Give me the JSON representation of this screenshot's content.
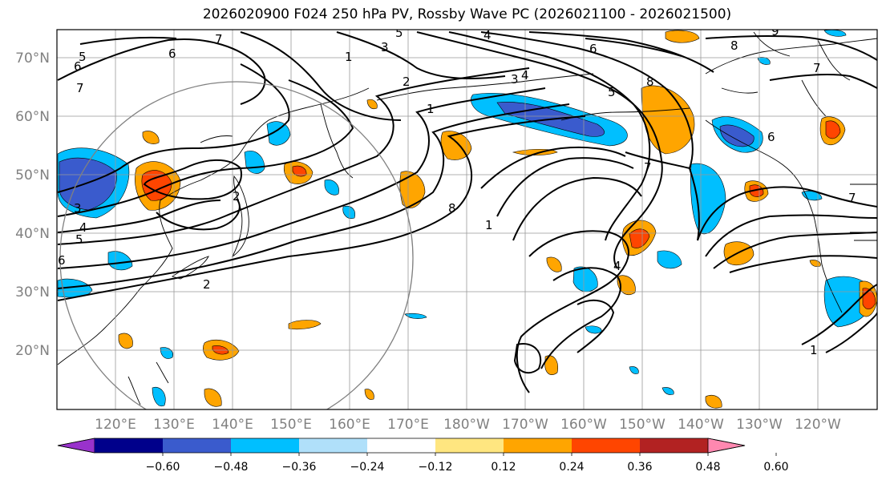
{
  "title": "2026020900 F024 250 hPa PV, Rossby Wave PC (2026021100 - 2026021500)",
  "lat_labels": [
    "70°N",
    "60°N",
    "50°N",
    "40°N",
    "30°N",
    "20°N"
  ],
  "lon_labels": [
    "120°E",
    "130°E",
    "140°E",
    "150°E",
    "160°E",
    "170°E",
    "180°W",
    "170°W",
    "160°W",
    "150°W",
    "140°W",
    "130°W",
    "120°W"
  ],
  "contour_labels": [
    "5",
    "4",
    "8",
    "6",
    "9",
    "1",
    "3",
    "2",
    "3",
    "4",
    "5",
    "6",
    "7",
    "7",
    "6",
    "5",
    "4",
    "3",
    "2",
    "8",
    "8",
    "7",
    "6",
    "7",
    "7",
    "5",
    "4",
    "2",
    "1",
    "1",
    "1",
    "6"
  ],
  "colorbar": {
    "ticks": [
      "−0.60",
      "−0.48",
      "−0.36",
      "−0.24",
      "−0.12",
      "0.12",
      "0.24",
      "0.36",
      "0.48",
      "0.60"
    ],
    "colors": [
      "#9932cc",
      "#00008b",
      "#3a5bcd",
      "#00bfff",
      "#b0e0fa",
      "#ffffff",
      "#ffe680",
      "#ffa500",
      "#ff4500",
      "#b22222",
      "#ff88b0"
    ]
  }
}
